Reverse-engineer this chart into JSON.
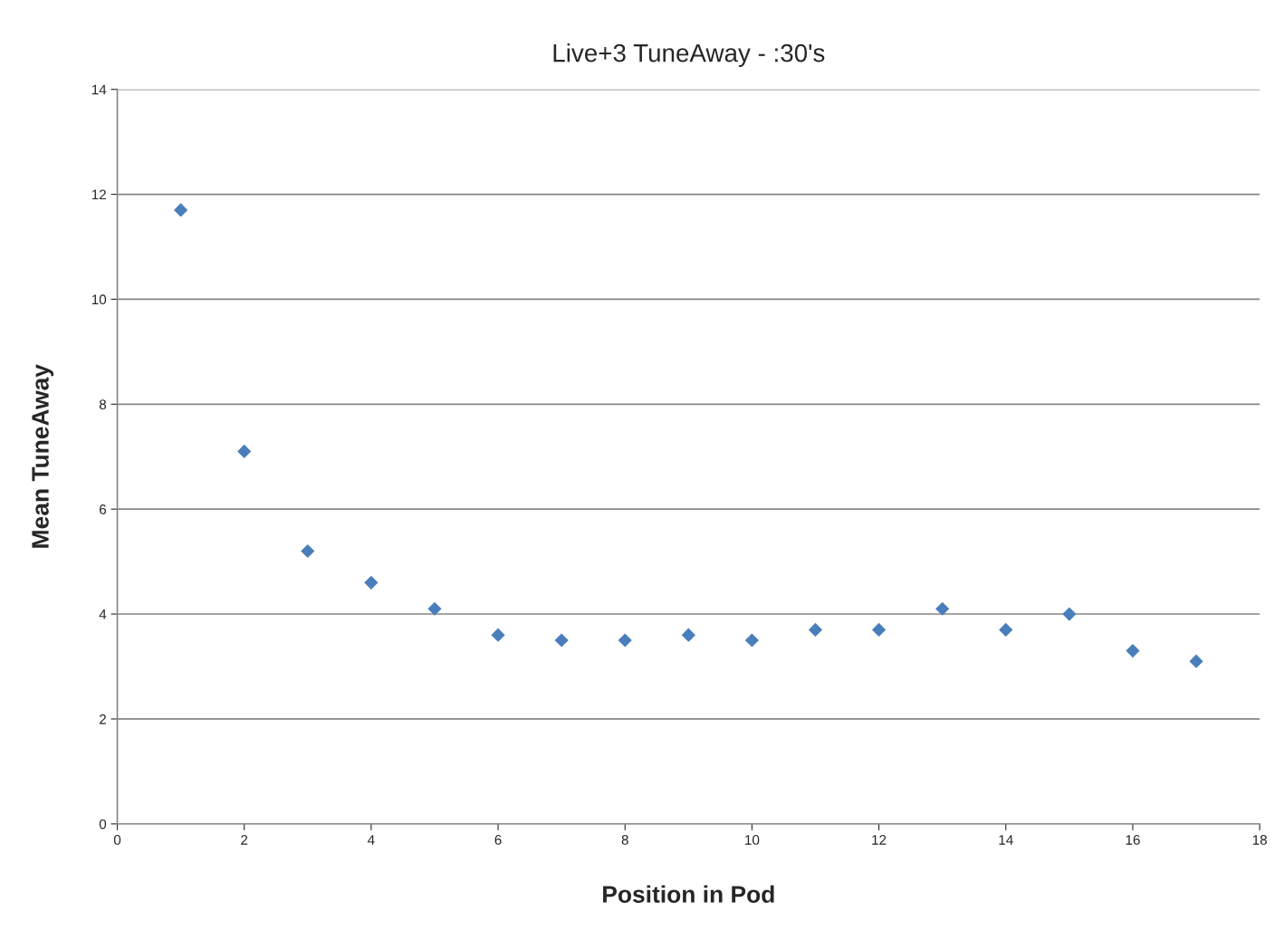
{
  "chart_data": {
    "type": "scatter",
    "title": "Live+3 TuneAway - :30's",
    "xlabel": "Position in Pod",
    "ylabel": "Mean TuneAway",
    "x": [
      1,
      2,
      3,
      4,
      5,
      6,
      7,
      8,
      9,
      10,
      11,
      12,
      13,
      14,
      15,
      16,
      17
    ],
    "series": [
      {
        "color": "#4a7ebb",
        "values": [
          11.7,
          7.1,
          5.2,
          4.6,
          4.1,
          3.6,
          3.5,
          3.5,
          3.6,
          3.5,
          3.7,
          3.7,
          4.1,
          3.7,
          4.0,
          3.3,
          3.1
        ]
      }
    ],
    "xlim": [
      0,
      18
    ],
    "xticks": [
      0,
      2,
      4,
      6,
      8,
      10,
      12,
      14,
      16,
      18
    ],
    "ylim": [
      0,
      14
    ],
    "yticks": [
      0,
      2,
      4,
      6,
      8,
      10,
      12,
      14
    ],
    "grid": "y",
    "marker": "diamond"
  }
}
